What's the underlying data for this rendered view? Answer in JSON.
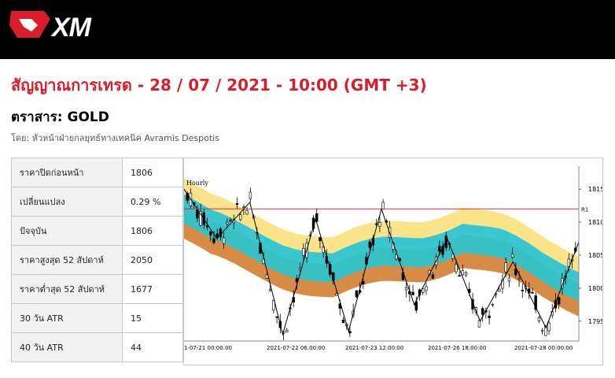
{
  "header": {
    "logo_text": "XM"
  },
  "signal_title": "สัญญาณการเทรด - 28 / 07 / 2021 - 10:00 (GMT +3)",
  "instrument_title": "ตราสาร: GOLD",
  "byline": "โดย: หัวหน้าฝ่ายกลยุทธ์ทางเทคนิค Avramis Despotis",
  "stats": [
    {
      "label": "ราคาปิดก่อนหน้า",
      "value": "1806"
    },
    {
      "label": "เปลี่ยนแปลง",
      "value": "0.29 %"
    },
    {
      "label": "ปัจจุบัน",
      "value": "1806"
    },
    {
      "label": "ราคาสูงสุด 52 สัปดาห์",
      "value": "2050"
    },
    {
      "label": "ราคาต่ำสุด 52 สัปดาห์",
      "value": "1677"
    },
    {
      "label": "30 วัน ATR",
      "value": "15"
    },
    {
      "label": "40 วัน ATR",
      "value": "44"
    }
  ],
  "chart_data": {
    "type": "line",
    "timeframe_label": "Hourly",
    "resistance_label": "R1",
    "resistance_level": 1812,
    "ylim": [
      1792,
      1818
    ],
    "yticks": [
      1795,
      1800,
      1805,
      1810,
      1815
    ],
    "xtick_labels": [
      "1-07-21 00:00:00",
      "2021-07-22 06:00:00",
      "2021-07-23 12:00:00",
      "2021-07-26 18:00:00",
      "2021-07-28 00:00:00"
    ],
    "zigzag": [
      1815,
      1807.5,
      1813,
      1793,
      1810.5,
      1793.5,
      1812,
      1797.5,
      1807.5,
      1795,
      1804,
      1794,
      1807
    ],
    "colors": {
      "yellow": "#fbe183",
      "cyan": "#2fc4cc",
      "orange": "#d4863a",
      "resistance": "#cc3333",
      "candle": "#000000"
    }
  }
}
